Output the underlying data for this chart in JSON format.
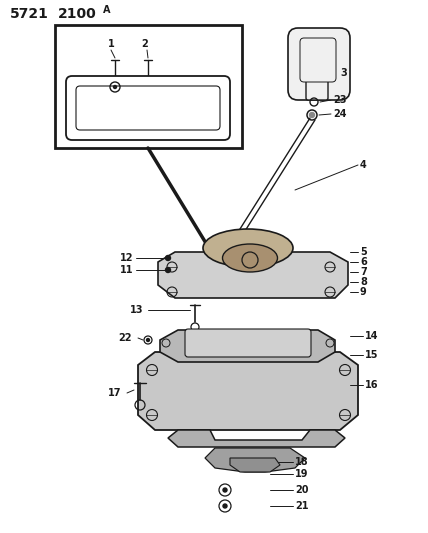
{
  "bg_color": "#ffffff",
  "line_color": "#1a1a1a",
  "text_color": "#1a1a1a",
  "title": "5721  2100",
  "title_super": "A",
  "fig_w": 4.28,
  "fig_h": 5.33,
  "dpi": 100
}
